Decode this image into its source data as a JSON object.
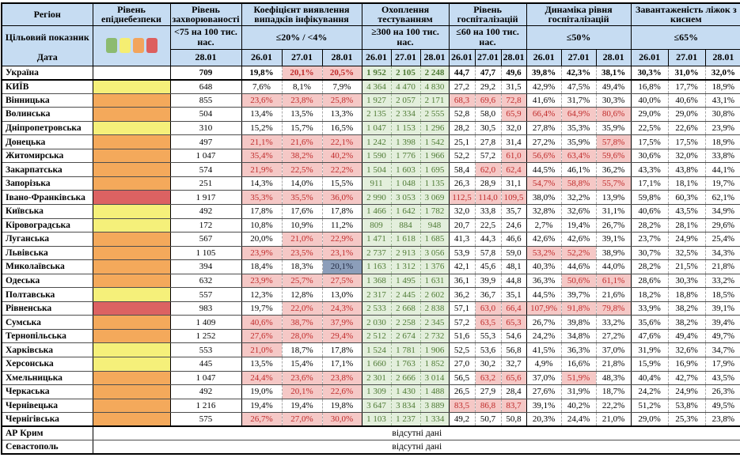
{
  "table": {
    "header": {
      "region": "Регіон",
      "target_label": "Цільовий показник",
      "date_label": "Дата",
      "groups": {
        "danger": {
          "title": "Рівень епіднебезпеки"
        },
        "incidence": {
          "title": "Рівень захворюваності",
          "target": "<75 на 100 тис. нас.",
          "date": "28.01"
        },
        "coef": {
          "title": "Коефіцієнт виявлення випадків інфікування",
          "target": "≤20% / <4%"
        },
        "testing": {
          "title": "Охоплення тестуванням",
          "target": "≥300 на 100 тис. нас."
        },
        "hosp": {
          "title": "Рівень госпіталізацій",
          "target": "≤60 на 100 тис. нас."
        },
        "dyn": {
          "title": "Динаміка рівня госпіталізацій",
          "target": "≤50%"
        },
        "oxygen": {
          "title": "Завантаженість ліжок з киснем",
          "target": "≤65%"
        }
      },
      "dates": [
        "26.01",
        "27.01",
        "28.01"
      ]
    },
    "legend_colors": [
      "#8cbb70",
      "#f5ee72",
      "#f2a45c",
      "#dd5f5e"
    ],
    "status_colors": {
      "red_text": "#c02b2b",
      "red_bg": "#f5c8c6",
      "green_text": "#4e7a34",
      "green_bg": "#e3efdc",
      "selected_bg": "#8c9eba",
      "header_bg": "#c6dcf2",
      "danger_yellow": "#f5f07a",
      "danger_orange": "#f4a95b",
      "danger_red": "#dc6262"
    },
    "no_data_text": "відсутні дані",
    "rows": [
      {
        "name": "Україна",
        "danger": "",
        "bold": true,
        "thick": true,
        "inc": "709",
        "coef": [
          "19,8%",
          "20,1%",
          "20,5%"
        ],
        "cf": [
          "n",
          "r",
          "r"
        ],
        "test": [
          "1 952",
          "2 105",
          "2 248"
        ],
        "hosp": [
          "44,7",
          "47,7",
          "49,6"
        ],
        "dyn": [
          "39,8%",
          "42,3%",
          "38,1%"
        ],
        "oxy": [
          "30,3%",
          "31,0%",
          "32,0%"
        ]
      },
      {
        "name": "КИЇВ",
        "danger": "yellow",
        "inc": "648",
        "coef": [
          "7,6%",
          "8,1%",
          "7,9%"
        ],
        "test": [
          "4 364",
          "4 470",
          "4 830"
        ],
        "hosp": [
          "27,2",
          "29,2",
          "31,5"
        ],
        "dyn": [
          "42,9%",
          "47,5%",
          "49,4%"
        ],
        "oxy": [
          "16,8%",
          "17,7%",
          "18,9%"
        ]
      },
      {
        "name": "Вінницька",
        "danger": "orange",
        "inc": "855",
        "coef": [
          "23,6%",
          "23,8%",
          "25,8%"
        ],
        "cf": [
          "r",
          "r",
          "r"
        ],
        "test": [
          "1 927",
          "2 057",
          "2 171"
        ],
        "hosp": [
          "68,3",
          "69,6",
          "72,8"
        ],
        "hf": [
          "r",
          "r",
          "r"
        ],
        "dyn": [
          "41,6%",
          "31,7%",
          "30,3%"
        ],
        "oxy": [
          "40,0%",
          "40,6%",
          "43,1%"
        ]
      },
      {
        "name": "Волинська",
        "danger": "orange",
        "inc": "504",
        "coef": [
          "13,4%",
          "13,5%",
          "13,3%"
        ],
        "test": [
          "2 135",
          "2 334",
          "2 555"
        ],
        "hosp": [
          "52,8",
          "58,0",
          "65,9"
        ],
        "hf": [
          "n",
          "n",
          "r"
        ],
        "dyn": [
          "66,4%",
          "64,9%",
          "80,6%"
        ],
        "df": [
          "r",
          "r",
          "r"
        ],
        "oxy": [
          "29,0%",
          "29,0%",
          "30,8%"
        ]
      },
      {
        "name": "Дніпропетровська",
        "danger": "yellow",
        "inc": "310",
        "coef": [
          "15,2%",
          "15,7%",
          "16,5%"
        ],
        "test": [
          "1 047",
          "1 153",
          "1 296"
        ],
        "hosp": [
          "28,2",
          "30,5",
          "32,0"
        ],
        "dyn": [
          "27,8%",
          "35,3%",
          "35,9%"
        ],
        "oxy": [
          "22,5%",
          "22,6%",
          "23,9%"
        ]
      },
      {
        "name": "Донецька",
        "danger": "orange",
        "inc": "497",
        "coef": [
          "21,1%",
          "21,6%",
          "22,1%"
        ],
        "cf": [
          "r",
          "r",
          "r"
        ],
        "test": [
          "1 242",
          "1 398",
          "1 542"
        ],
        "hosp": [
          "25,1",
          "27,8",
          "31,4"
        ],
        "dyn": [
          "27,2%",
          "35,9%",
          "57,8%"
        ],
        "df": [
          "n",
          "n",
          "r"
        ],
        "oxy": [
          "17,5%",
          "17,5%",
          "18,9%"
        ]
      },
      {
        "name": "Житомирська",
        "danger": "orange",
        "inc": "1 047",
        "coef": [
          "35,4%",
          "38,2%",
          "40,2%"
        ],
        "cf": [
          "r",
          "r",
          "r"
        ],
        "test": [
          "1 590",
          "1 776",
          "1 966"
        ],
        "hosp": [
          "52,2",
          "57,2",
          "61,0"
        ],
        "hf": [
          "n",
          "n",
          "r"
        ],
        "dyn": [
          "56,6%",
          "63,4%",
          "59,6%"
        ],
        "df": [
          "r",
          "r",
          "r"
        ],
        "oxy": [
          "30,6%",
          "32,0%",
          "33,8%"
        ]
      },
      {
        "name": "Закарпатська",
        "danger": "orange",
        "inc": "574",
        "coef": [
          "21,9%",
          "22,5%",
          "22,2%"
        ],
        "cf": [
          "r",
          "r",
          "r"
        ],
        "test": [
          "1 504",
          "1 603",
          "1 695"
        ],
        "hosp": [
          "58,4",
          "62,0",
          "62,4"
        ],
        "hf": [
          "n",
          "r",
          "r"
        ],
        "dyn": [
          "44,5%",
          "46,1%",
          "36,2%"
        ],
        "oxy": [
          "43,3%",
          "43,8%",
          "44,1%"
        ]
      },
      {
        "name": "Запорізька",
        "danger": "orange",
        "inc": "251",
        "coef": [
          "14,3%",
          "14,0%",
          "15,5%"
        ],
        "test": [
          "911",
          "1 048",
          "1 135"
        ],
        "hosp": [
          "26,3",
          "28,9",
          "31,1"
        ],
        "dyn": [
          "54,7%",
          "58,8%",
          "55,7%"
        ],
        "df": [
          "r",
          "r",
          "r"
        ],
        "oxy": [
          "17,1%",
          "18,1%",
          "19,7%"
        ]
      },
      {
        "name": "Івано-Франківська",
        "danger": "red",
        "inc": "1 917",
        "coef": [
          "35,3%",
          "35,5%",
          "36,0%"
        ],
        "cf": [
          "r",
          "r",
          "r"
        ],
        "test": [
          "2 990",
          "3 053",
          "3 069"
        ],
        "hosp": [
          "112,5",
          "114,0",
          "109,5"
        ],
        "hf": [
          "r",
          "r",
          "r"
        ],
        "dyn": [
          "38,0%",
          "32,2%",
          "13,9%"
        ],
        "oxy": [
          "59,8%",
          "60,3%",
          "62,1%"
        ]
      },
      {
        "name": "Київська",
        "danger": "yellow",
        "inc": "492",
        "coef": [
          "17,8%",
          "17,6%",
          "17,8%"
        ],
        "test": [
          "1 466",
          "1 642",
          "1 782"
        ],
        "hosp": [
          "32,0",
          "33,8",
          "35,7"
        ],
        "dyn": [
          "32,8%",
          "32,6%",
          "31,1%"
        ],
        "oxy": [
          "40,6%",
          "43,5%",
          "34,9%"
        ]
      },
      {
        "name": "Кіровоградська",
        "danger": "yellow",
        "inc": "172",
        "coef": [
          "10,8%",
          "10,9%",
          "11,2%"
        ],
        "test": [
          "809",
          "884",
          "948"
        ],
        "hosp": [
          "20,7",
          "22,5",
          "24,6"
        ],
        "dyn": [
          "2,7%",
          "19,4%",
          "26,7%"
        ],
        "oxy": [
          "28,2%",
          "28,1%",
          "29,6%"
        ]
      },
      {
        "name": "Луганська",
        "danger": "orange",
        "inc": "567",
        "coef": [
          "20,0%",
          "21,0%",
          "22,9%"
        ],
        "cf": [
          "n",
          "r",
          "r"
        ],
        "test": [
          "1 471",
          "1 618",
          "1 685"
        ],
        "hosp": [
          "41,3",
          "44,3",
          "46,6"
        ],
        "dyn": [
          "42,6%",
          "42,6%",
          "39,1%"
        ],
        "oxy": [
          "23,7%",
          "24,9%",
          "25,4%"
        ]
      },
      {
        "name": "Львівська",
        "danger": "orange",
        "inc": "1 105",
        "coef": [
          "23,9%",
          "23,5%",
          "23,1%"
        ],
        "cf": [
          "r",
          "r",
          "r"
        ],
        "test": [
          "2 737",
          "2 913",
          "3 056"
        ],
        "hosp": [
          "53,9",
          "57,8",
          "59,0"
        ],
        "dyn": [
          "53,2%",
          "52,2%",
          "38,9%"
        ],
        "df": [
          "r",
          "r",
          "n"
        ],
        "oxy": [
          "30,7%",
          "32,5%",
          "34,3%"
        ]
      },
      {
        "name": "Миколаївська",
        "danger": "orange",
        "inc": "394",
        "coef": [
          "18,4%",
          "18,3%",
          "20,1%"
        ],
        "cf": [
          "n",
          "n",
          "s"
        ],
        "test": [
          "1 163",
          "1 312",
          "1 376"
        ],
        "hosp": [
          "42,1",
          "45,6",
          "48,1"
        ],
        "dyn": [
          "40,3%",
          "44,6%",
          "44,0%"
        ],
        "oxy": [
          "28,2%",
          "21,5%",
          "21,8%"
        ]
      },
      {
        "name": "Одеська",
        "danger": "orange",
        "inc": "632",
        "coef": [
          "23,9%",
          "25,7%",
          "27,5%"
        ],
        "cf": [
          "r",
          "r",
          "r"
        ],
        "test": [
          "1 368",
          "1 495",
          "1 631"
        ],
        "hosp": [
          "36,1",
          "39,9",
          "44,8"
        ],
        "dyn": [
          "36,3%",
          "50,6%",
          "61,1%"
        ],
        "df": [
          "n",
          "r",
          "r"
        ],
        "oxy": [
          "28,6%",
          "30,3%",
          "33,2%"
        ]
      },
      {
        "name": "Полтавська",
        "danger": "yellow",
        "inc": "557",
        "coef": [
          "12,3%",
          "12,8%",
          "13,0%"
        ],
        "test": [
          "2 317",
          "2 445",
          "2 602"
        ],
        "hosp": [
          "36,2",
          "36,7",
          "35,1"
        ],
        "dyn": [
          "44,5%",
          "39,7%",
          "21,6%"
        ],
        "oxy": [
          "18,2%",
          "18,8%",
          "18,5%"
        ]
      },
      {
        "name": "Рівненська",
        "danger": "red",
        "inc": "983",
        "coef": [
          "19,7%",
          "22,0%",
          "24,3%"
        ],
        "cf": [
          "n",
          "r",
          "r"
        ],
        "test": [
          "2 533",
          "2 668",
          "2 838"
        ],
        "hosp": [
          "57,1",
          "63,0",
          "66,4"
        ],
        "hf": [
          "n",
          "r",
          "r"
        ],
        "dyn": [
          "107,9%",
          "91,8%",
          "79,8%"
        ],
        "df": [
          "r",
          "r",
          "r"
        ],
        "oxy": [
          "33,9%",
          "38,2%",
          "39,1%"
        ]
      },
      {
        "name": "Сумська",
        "danger": "orange",
        "inc": "1 409",
        "coef": [
          "40,6%",
          "38,7%",
          "37,9%"
        ],
        "cf": [
          "r",
          "r",
          "r"
        ],
        "test": [
          "2 030",
          "2 258",
          "2 345"
        ],
        "hosp": [
          "57,2",
          "63,5",
          "65,3"
        ],
        "hf": [
          "n",
          "r",
          "r"
        ],
        "dyn": [
          "26,7%",
          "39,8%",
          "33,2%"
        ],
        "oxy": [
          "35,6%",
          "38,2%",
          "39,4%"
        ]
      },
      {
        "name": "Тернопільська",
        "danger": "orange",
        "inc": "1 252",
        "coef": [
          "27,6%",
          "28,0%",
          "29,4%"
        ],
        "cf": [
          "r",
          "r",
          "r"
        ],
        "test": [
          "2 512",
          "2 674",
          "2 732"
        ],
        "hosp": [
          "51,6",
          "55,3",
          "54,6"
        ],
        "dyn": [
          "24,2%",
          "34,8%",
          "27,2%"
        ],
        "oxy": [
          "47,6%",
          "49,4%",
          "49,7%"
        ]
      },
      {
        "name": "Харківська",
        "danger": "yellow",
        "inc": "553",
        "coef": [
          "21,0%",
          "18,7%",
          "17,8%"
        ],
        "cf": [
          "r",
          "n",
          "n"
        ],
        "test": [
          "1 524",
          "1 781",
          "1 906"
        ],
        "hosp": [
          "52,5",
          "53,6",
          "56,8"
        ],
        "dyn": [
          "41,5%",
          "36,3%",
          "37,0%"
        ],
        "oxy": [
          "31,9%",
          "32,6%",
          "34,7%"
        ]
      },
      {
        "name": "Херсонська",
        "danger": "yellow",
        "inc": "445",
        "coef": [
          "13,5%",
          "15,4%",
          "17,1%"
        ],
        "test": [
          "1 660",
          "1 763",
          "1 852"
        ],
        "hosp": [
          "27,0",
          "30,2",
          "32,7"
        ],
        "dyn": [
          "4,9%",
          "16,6%",
          "21,8%"
        ],
        "oxy": [
          "15,9%",
          "16,9%",
          "17,9%"
        ]
      },
      {
        "name": "Хмельницька",
        "danger": "orange",
        "inc": "1 047",
        "coef": [
          "24,4%",
          "23,6%",
          "23,8%"
        ],
        "cf": [
          "r",
          "r",
          "r"
        ],
        "test": [
          "2 301",
          "2 666",
          "3 014"
        ],
        "hosp": [
          "56,5",
          "63,2",
          "65,6"
        ],
        "hf": [
          "n",
          "r",
          "r"
        ],
        "dyn": [
          "37,0%",
          "51,9%",
          "48,3%"
        ],
        "df": [
          "n",
          "r",
          "n"
        ],
        "oxy": [
          "40,4%",
          "42,7%",
          "43,5%"
        ]
      },
      {
        "name": "Черкаська",
        "danger": "orange",
        "inc": "492",
        "coef": [
          "19,0%",
          "20,1%",
          "22,6%"
        ],
        "cf": [
          "n",
          "r",
          "r"
        ],
        "test": [
          "1 309",
          "1 430",
          "1 488"
        ],
        "hosp": [
          "26,5",
          "27,9",
          "28,4"
        ],
        "dyn": [
          "27,6%",
          "31,9%",
          "18,7%"
        ],
        "oxy": [
          "24,2%",
          "24,9%",
          "26,3%"
        ]
      },
      {
        "name": "Чернівецька",
        "danger": "orange",
        "inc": "1 216",
        "coef": [
          "19,4%",
          "19,4%",
          "19,8%"
        ],
        "test": [
          "3 647",
          "3 834",
          "3 889"
        ],
        "hosp": [
          "83,5",
          "86,8",
          "83,7"
        ],
        "hf": [
          "r",
          "r",
          "r"
        ],
        "dyn": [
          "39,1%",
          "40,2%",
          "22,2%"
        ],
        "oxy": [
          "51,2%",
          "53,8%",
          "49,5%"
        ]
      },
      {
        "name": "Чернігівська",
        "danger": "orange",
        "thick": true,
        "inc": "575",
        "coef": [
          "26,7%",
          "27,0%",
          "30,0%"
        ],
        "cf": [
          "r",
          "r",
          "r"
        ],
        "test": [
          "1 103",
          "1 237",
          "1 334"
        ],
        "hosp": [
          "49,2",
          "50,7",
          "50,8"
        ],
        "dyn": [
          "20,3%",
          "24,4%",
          "21,0%"
        ],
        "oxy": [
          "29,0%",
          "25,3%",
          "23,8%"
        ]
      },
      {
        "name": "АР Крим",
        "no_data": true
      },
      {
        "name": "Севастополь",
        "no_data": true
      }
    ]
  }
}
